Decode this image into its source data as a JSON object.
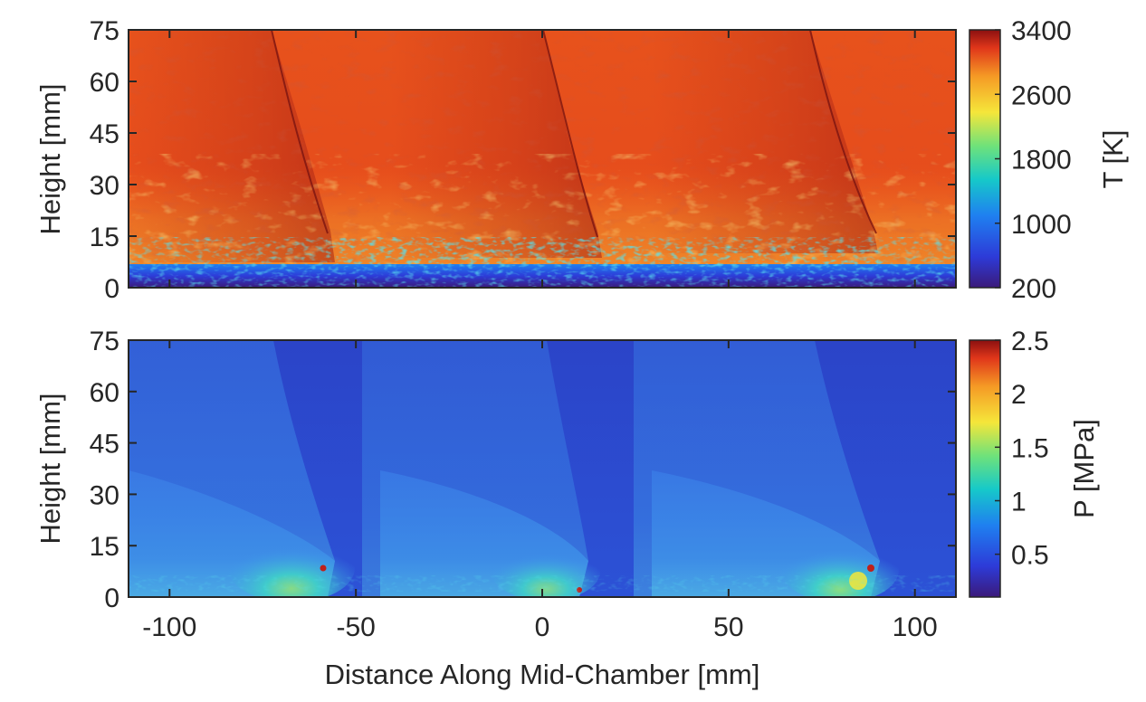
{
  "chart_data": [
    {
      "type": "heatmap",
      "panel": "top",
      "field": "temperature",
      "xlim": [
        -111,
        111
      ],
      "ylim": [
        0,
        75
      ],
      "yticks": [
        0,
        15,
        30,
        45,
        60,
        75
      ],
      "ytick_labels": [
        "0",
        "15",
        "30",
        "45",
        "60",
        "75"
      ],
      "ylabel": "Height [mm]",
      "colorbar": {
        "label": "T [K]",
        "range": [
          200,
          3400
        ],
        "ticks": [
          200,
          1000,
          1800,
          2600,
          3400
        ],
        "tick_labels": [
          "200",
          "1000",
          "1800",
          "2600",
          "3400"
        ],
        "colormap": "jet"
      },
      "detonation_fronts_x_mm": [
        -60,
        13,
        88
      ],
      "fill_layer_height_mm": 7,
      "shock_trail_angle": "inclined"
    },
    {
      "type": "heatmap",
      "panel": "bottom",
      "field": "pressure",
      "xlim": [
        -111,
        111
      ],
      "ylim": [
        0,
        75
      ],
      "xticks": [
        -100,
        -50,
        0,
        50,
        100
      ],
      "xtick_labels": [
        "-100",
        "-50",
        "0",
        "50",
        "100"
      ],
      "yticks": [
        0,
        15,
        30,
        45,
        60,
        75
      ],
      "ytick_labels": [
        "0",
        "15",
        "30",
        "45",
        "60",
        "75"
      ],
      "xlabel": "Distance Along Mid-Chamber [mm]",
      "ylabel": "Height [mm]",
      "colorbar": {
        "label": "P [MPa]",
        "range": [
          0.1,
          2.5
        ],
        "ticks": [
          0.5,
          1,
          1.5,
          2,
          2.5
        ],
        "tick_labels": [
          "0.5",
          "1",
          "1.5",
          "2",
          "2.5"
        ],
        "colormap": "jet"
      },
      "detonation_fronts_x_mm": [
        -60,
        13,
        88
      ]
    }
  ],
  "colors": {
    "jet_dark_blue": "#3b1a7a",
    "jet_blue": "#1f4fe0",
    "jet_cyan": "#16c9c9",
    "jet_yellow": "#f5e63a",
    "jet_orange": "#f26a1c",
    "jet_dark_red": "#8a1010",
    "axis": "#262626"
  }
}
